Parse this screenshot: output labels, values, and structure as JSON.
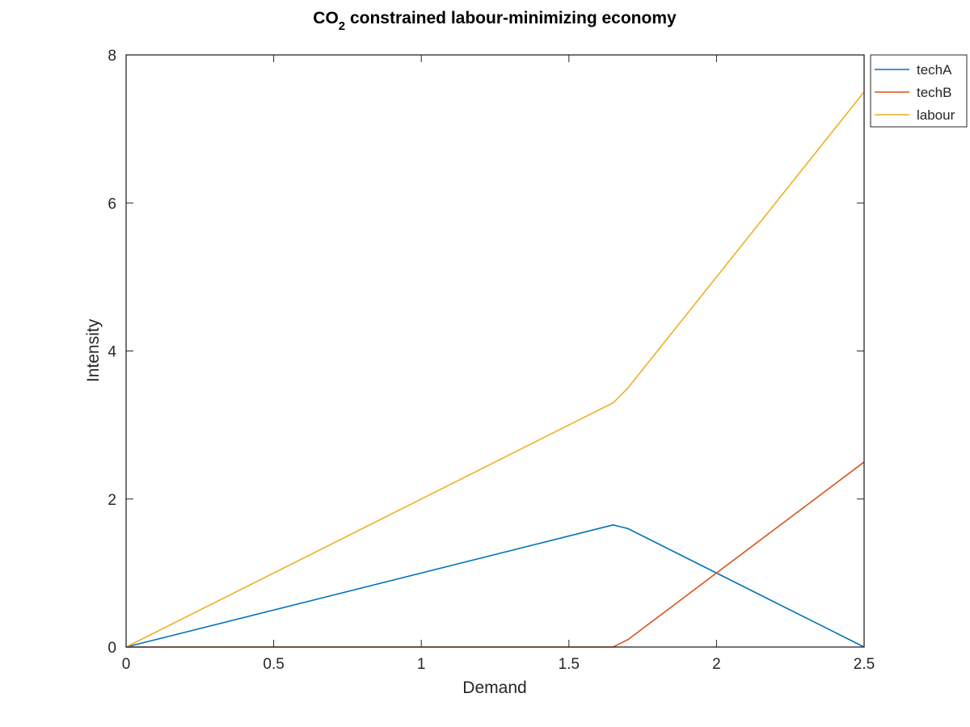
{
  "chart_data": {
    "type": "line",
    "title": {
      "main": "CO",
      "subscript": "2",
      "rest": " constrained labour-minimizing economy"
    },
    "xlabel": "Demand",
    "ylabel": "Intensity",
    "xlim": [
      0,
      2.5
    ],
    "ylim": [
      0,
      8
    ],
    "xticks": [
      0,
      0.5,
      1,
      1.5,
      2,
      2.5
    ],
    "xtick_labels": [
      "0",
      "0.5",
      "1",
      "1.5",
      "2",
      "2.5"
    ],
    "yticks": [
      0,
      2,
      4,
      6,
      8
    ],
    "ytick_labels": [
      "0",
      "2",
      "4",
      "6",
      "8"
    ],
    "grid": false,
    "legend_position": "outside-top-right",
    "series": [
      {
        "name": "techA",
        "color": "#0072bd",
        "x": [
          0,
          1.65,
          1.7,
          2.5
        ],
        "y": [
          0,
          1.65,
          1.6,
          0
        ]
      },
      {
        "name": "techB",
        "color": "#d95319",
        "x": [
          0,
          1.65,
          1.7,
          2.5
        ],
        "y": [
          0,
          0,
          0.1,
          2.5
        ]
      },
      {
        "name": "labour",
        "color": "#edb120",
        "x": [
          0,
          1.65,
          1.7,
          2.5
        ],
        "y": [
          0,
          3.3,
          3.5,
          7.5
        ]
      }
    ]
  }
}
